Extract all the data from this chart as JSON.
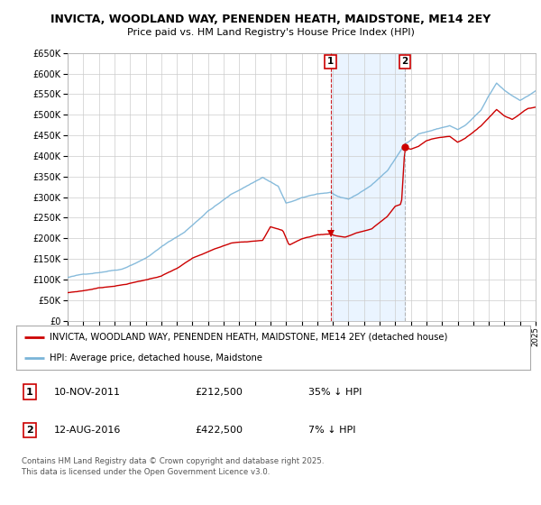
{
  "title": "INVICTA, WOODLAND WAY, PENENDEN HEATH, MAIDSTONE, ME14 2EY",
  "subtitle": "Price paid vs. HM Land Registry's House Price Index (HPI)",
  "legend_line1": "INVICTA, WOODLAND WAY, PENENDEN HEATH, MAIDSTONE, ME14 2EY (detached house)",
  "legend_line2": "HPI: Average price, detached house, Maidstone",
  "annotation1_label": "1",
  "annotation1_date": "10-NOV-2011",
  "annotation1_price": "£212,500",
  "annotation1_hpi": "35% ↓ HPI",
  "annotation2_label": "2",
  "annotation2_date": "12-AUG-2016",
  "annotation2_price": "£422,500",
  "annotation2_hpi": "7% ↓ HPI",
  "copyright": "Contains HM Land Registry data © Crown copyright and database right 2025.\nThis data is licensed under the Open Government Licence v3.0.",
  "sale1_year": 2011.86,
  "sale1_value": 212500,
  "sale2_year": 2016.62,
  "sale2_value": 422500,
  "hpi_color": "#7ab4d8",
  "price_color": "#cc0000",
  "shade_color": "#ddeeff",
  "vline1_color": "#cc0000",
  "vline2_color": "#aaaaaa",
  "background_color": "#ffffff",
  "grid_color": "#cccccc",
  "ylim": [
    0,
    650000
  ],
  "yticks": [
    0,
    50000,
    100000,
    150000,
    200000,
    250000,
    300000,
    350000,
    400000,
    450000,
    500000,
    550000,
    600000,
    650000
  ],
  "year_start": 1995,
  "year_end": 2025
}
